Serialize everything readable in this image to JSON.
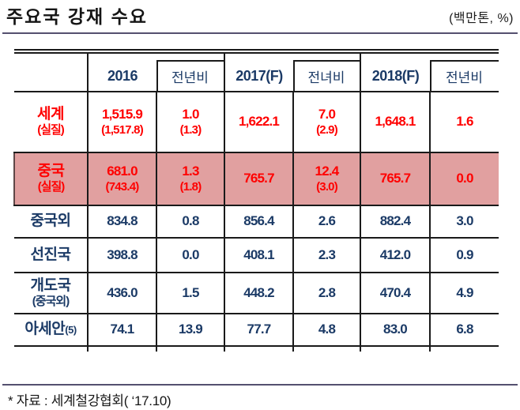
{
  "title": "주요국 강재 수요",
  "unit": "(백만톤, %)",
  "footnote": "* 자료 : 세계철강협회( ‘17.10)",
  "colors": {
    "red_text": "#ff0000",
    "navy_text": "#1b3a66",
    "highlight_row_bg": "#e1a0a0",
    "rule_line": "#54506f"
  },
  "table": {
    "columns": [
      {
        "label": "",
        "type": "label"
      },
      {
        "label": "2016",
        "type": "year"
      },
      {
        "label": "전년비",
        "type": "yoy"
      },
      {
        "label": "2017(F)",
        "type": "year"
      },
      {
        "label": "전녀비",
        "type": "yoy"
      },
      {
        "label": "2018(F)",
        "type": "year"
      },
      {
        "label": "전년비",
        "type": "yoy"
      }
    ],
    "rows": [
      {
        "id": "world",
        "label": "세계",
        "sub": "(실질)",
        "suffix": "",
        "variant": "red",
        "cells": [
          {
            "v": "1,515.9",
            "s": "(1,517.8)"
          },
          {
            "v": "1.0",
            "s": "(1.3)"
          },
          {
            "v": "1,622.1"
          },
          {
            "v": "7.0",
            "s": "(2.9)"
          },
          {
            "v": "1,648.1"
          },
          {
            "v": "1.6"
          }
        ]
      },
      {
        "id": "china",
        "label": "중국",
        "sub": "(실질)",
        "suffix": "",
        "variant": "red-highlight",
        "cells": [
          {
            "v": "681.0",
            "s": "(743.4)"
          },
          {
            "v": "1.3",
            "s": "(1.8)"
          },
          {
            "v": "765.7"
          },
          {
            "v": "12.4",
            "s": "(3.0)"
          },
          {
            "v": "765.7"
          },
          {
            "v": "0.0"
          }
        ]
      },
      {
        "id": "ex-china",
        "label": "중국외",
        "sub": "",
        "suffix": "",
        "variant": "normal",
        "cells": [
          {
            "v": "834.8"
          },
          {
            "v": "0.8"
          },
          {
            "v": "856.4"
          },
          {
            "v": "2.6"
          },
          {
            "v": "882.4"
          },
          {
            "v": "3.0"
          }
        ]
      },
      {
        "id": "advanced",
        "label": "선진국",
        "sub": "",
        "suffix": "",
        "variant": "normal",
        "cells": [
          {
            "v": "398.8"
          },
          {
            "v": "0.0"
          },
          {
            "v": "408.1"
          },
          {
            "v": "2.3"
          },
          {
            "v": "412.0"
          },
          {
            "v": "0.9"
          }
        ]
      },
      {
        "id": "developing",
        "label": "개도국",
        "sub": "(중국외)",
        "suffix": "",
        "variant": "normal",
        "cells": [
          {
            "v": "436.0"
          },
          {
            "v": "1.5"
          },
          {
            "v": "448.2"
          },
          {
            "v": "2.8"
          },
          {
            "v": "470.4"
          },
          {
            "v": "4.9"
          }
        ]
      },
      {
        "id": "asean5",
        "label": "아세안",
        "sub": "",
        "suffix": "(5)",
        "variant": "normal",
        "cells": [
          {
            "v": "74.1"
          },
          {
            "v": "13.9"
          },
          {
            "v": "77.7"
          },
          {
            "v": "4.8"
          },
          {
            "v": "83.0"
          },
          {
            "v": "6.8"
          }
        ]
      }
    ]
  }
}
